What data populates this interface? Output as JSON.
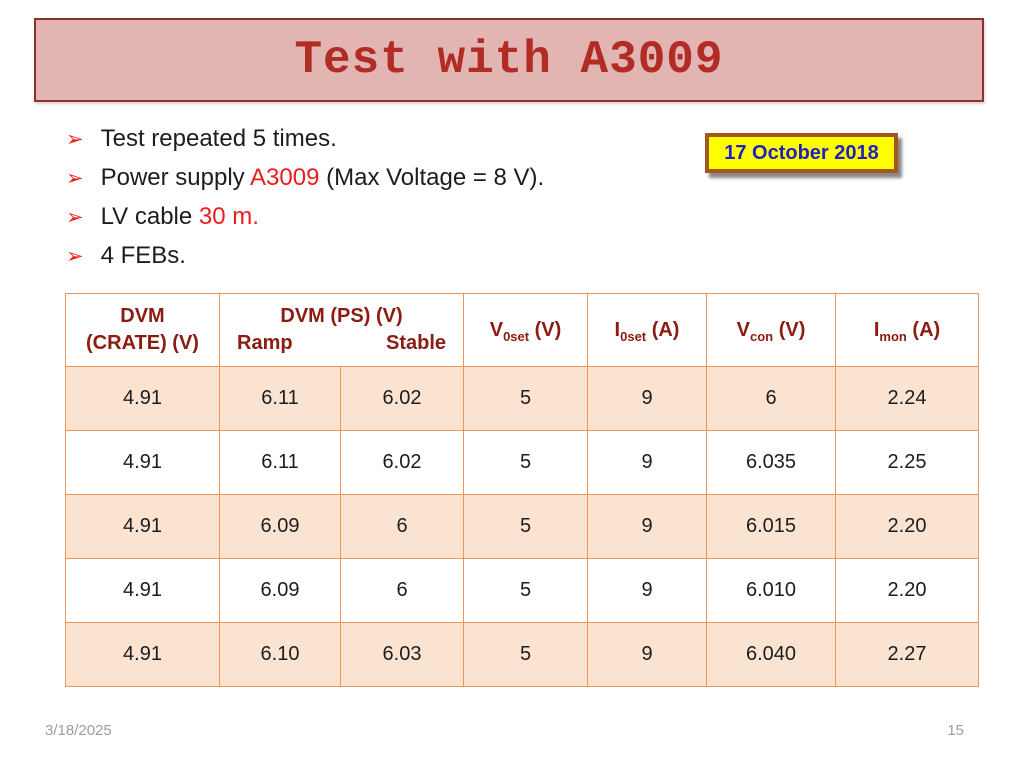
{
  "slide": {
    "title": "Test with A3009",
    "bullet_icon": "➢",
    "bullets": [
      {
        "segments": [
          {
            "text": "Test repeated 5 times.",
            "accent": false
          }
        ]
      },
      {
        "segments": [
          {
            "text": "Power supply ",
            "accent": false
          },
          {
            "text": "A3009",
            "accent": true
          },
          {
            "text": " (Max Voltage = 8 V).",
            "accent": false
          }
        ]
      },
      {
        "segments": [
          {
            "text": "LV cable ",
            "accent": false
          },
          {
            "text": "30 m.",
            "accent": true
          }
        ]
      },
      {
        "segments": [
          {
            "text": "4 FEBs.",
            "accent": false
          }
        ]
      }
    ],
    "date_badge": "17 October 2018",
    "footer_date": "3/18/2025",
    "page_number": "15"
  },
  "table": {
    "header": {
      "crate": {
        "name": "dvm-crate",
        "lines": [
          "DVM",
          "(CRATE) (V)"
        ]
      },
      "dvm_ps": {
        "name": "dvm-ps",
        "title": "DVM (PS) (V)",
        "sub_columns": [
          "Ramp",
          "Stable"
        ]
      },
      "measure_cols": [
        {
          "name": "v0set",
          "base": "V",
          "sub": "0set",
          "unit": "(V)"
        },
        {
          "name": "i0set",
          "base": "I",
          "sub": "0set",
          "unit": "(A)"
        },
        {
          "name": "vcon",
          "base": "V",
          "sub": "con",
          "unit": "(V)"
        },
        {
          "name": "imon",
          "base": "I",
          "sub": "mon",
          "unit": "(A)"
        }
      ]
    },
    "rows": [
      [
        "4.91",
        "6.11",
        "6.02",
        "5",
        "9",
        "6",
        "2.24"
      ],
      [
        "4.91",
        "6.11",
        "6.02",
        "5",
        "9",
        "6.035",
        "2.25"
      ],
      [
        "4.91",
        "6.09",
        "6",
        "5",
        "9",
        "6.015",
        "2.20"
      ],
      [
        "4.91",
        "6.09",
        "6",
        "5",
        "9",
        "6.010",
        "2.20"
      ],
      [
        "4.91",
        "6.10",
        "6.03",
        "5",
        "9",
        "6.040",
        "2.27"
      ]
    ]
  },
  "colors": {
    "banner_fill": "#e2b5b3",
    "banner_border": "#8e3230",
    "title_text": "#b02c24",
    "accent_red": "#ee1c1c",
    "body_text": "#1d1d1d",
    "table_border": "#e8985c",
    "table_band_fill": "#fbe3d2",
    "table_header_text": "#8c1b12",
    "badge_fill": "#ffff00",
    "badge_border": "#a3571f",
    "badge_text": "#2121bd",
    "footer_text": "#9d9d9d"
  }
}
